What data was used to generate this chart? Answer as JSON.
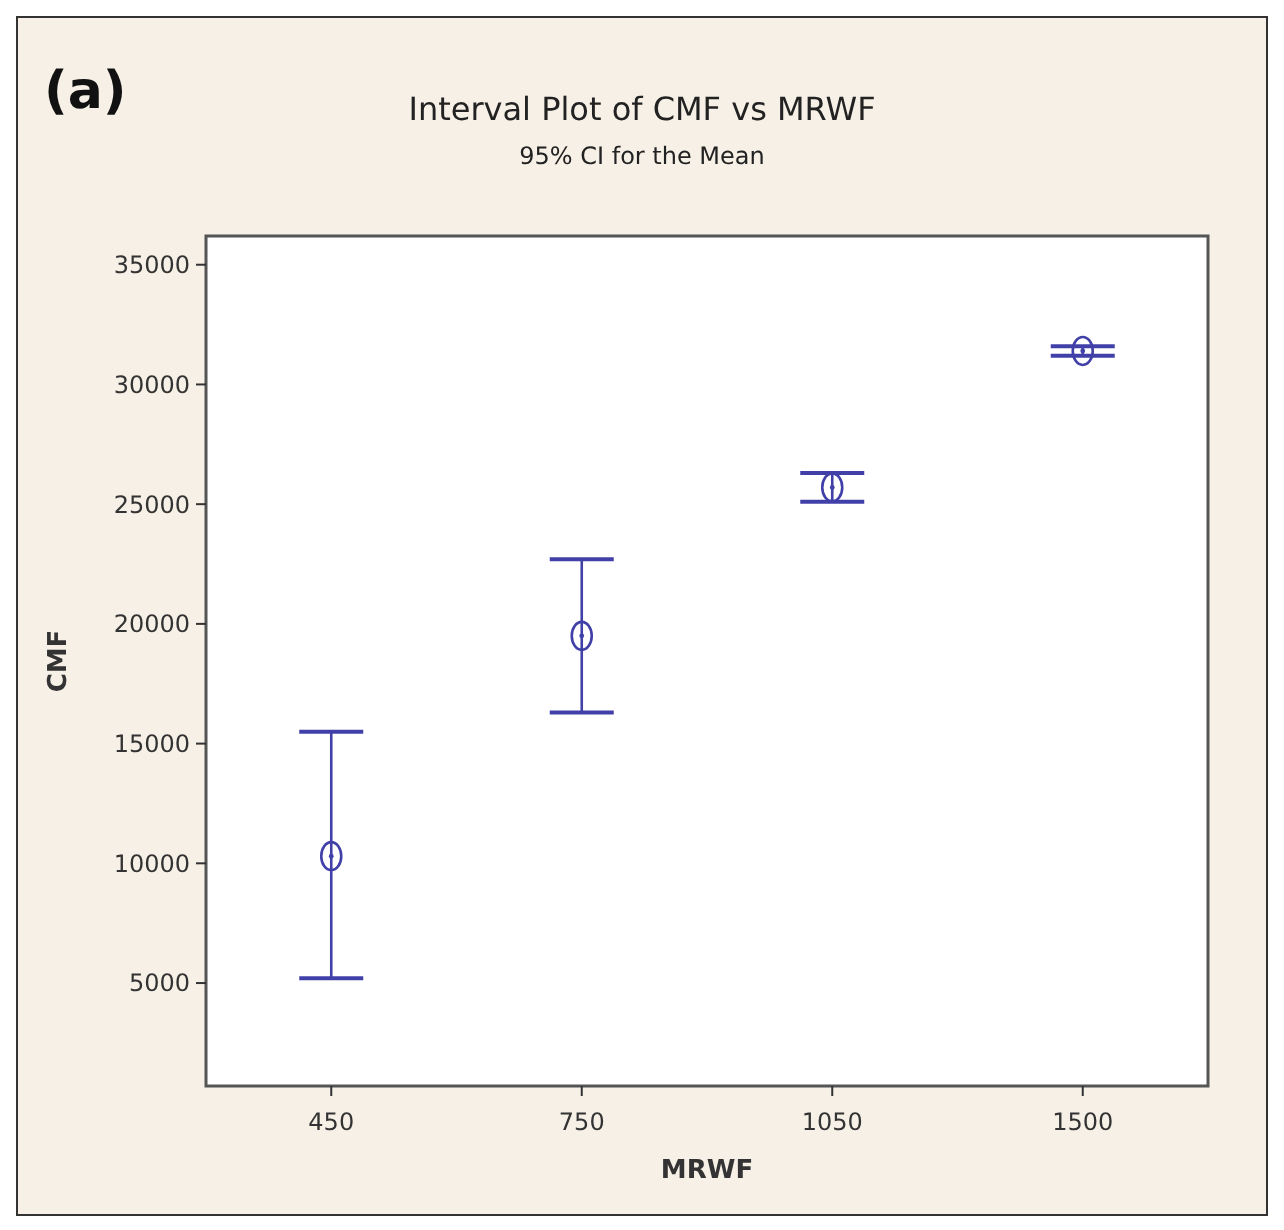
{
  "chart_data": {
    "type": "scatter",
    "title": "Interval Plot of CMF vs MRWF",
    "subtitle": "95% CI for the Mean",
    "xlabel": "MRWF",
    "ylabel": "CMF",
    "annotations": [
      "(a)"
    ],
    "categories": [
      "450",
      "750",
      "1050",
      "1500"
    ],
    "series": [
      {
        "color": "#4040a8",
        "values": [
          10300,
          19500,
          25700,
          31400
        ],
        "errors": [
          [
            5200,
            15500
          ],
          [
            16300,
            22700
          ],
          [
            25100,
            26300
          ],
          [
            31200,
            31600
          ]
        ]
      }
    ],
    "ylim": [
      700,
      36200
    ],
    "yticks": [
      5000,
      10000,
      15000,
      20000,
      25000,
      30000,
      35000
    ],
    "grid": false,
    "marker": "circle"
  }
}
